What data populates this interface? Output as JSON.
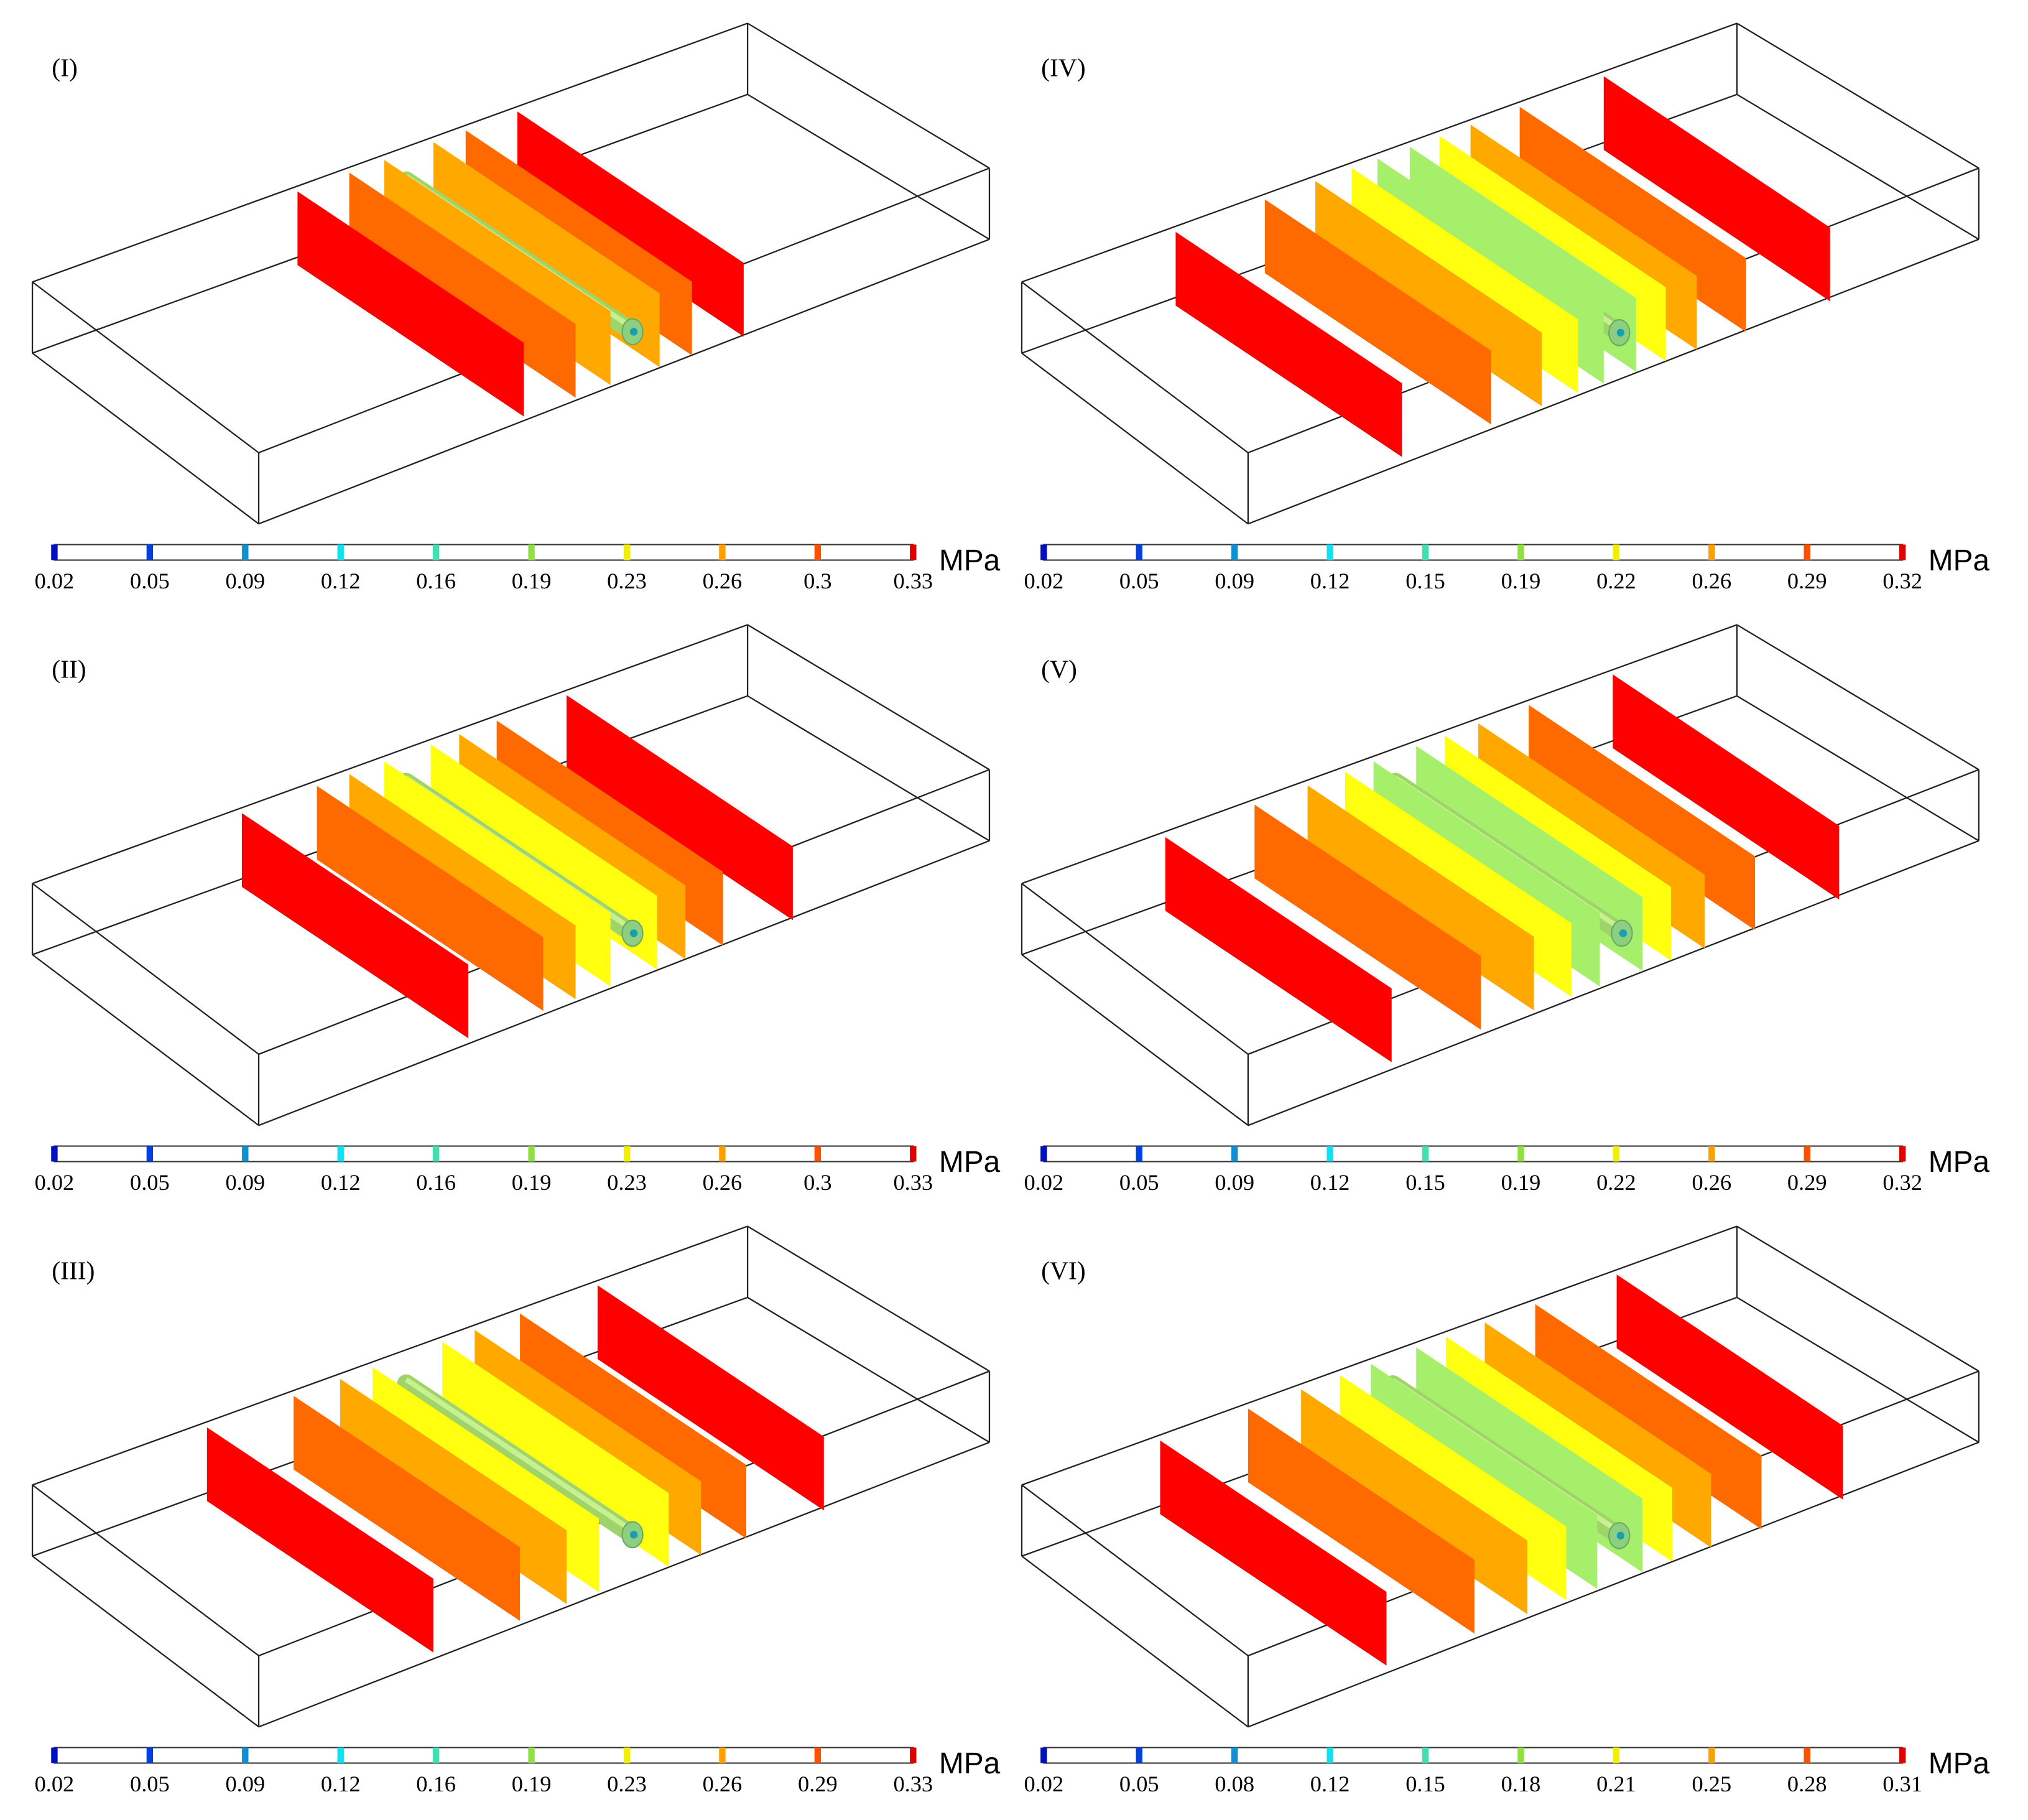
{
  "unit": "MPa",
  "panels": [
    {
      "label": "(I)",
      "colorbar_ticks": [
        0.02,
        0.05,
        0.09,
        0.12,
        0.16,
        0.19,
        0.23,
        0.26,
        0.3,
        0.33
      ]
    },
    {
      "label": "(II)",
      "colorbar_ticks": [
        0.02,
        0.05,
        0.09,
        0.12,
        0.16,
        0.19,
        0.23,
        0.26,
        0.3,
        0.33
      ]
    },
    {
      "label": "(III)",
      "colorbar_ticks": [
        0.02,
        0.05,
        0.09,
        0.12,
        0.16,
        0.19,
        0.23,
        0.26,
        0.29,
        0.33
      ]
    },
    {
      "label": "(IV)",
      "colorbar_ticks": [
        0.02,
        0.05,
        0.09,
        0.12,
        0.15,
        0.19,
        0.22,
        0.26,
        0.29,
        0.32
      ]
    },
    {
      "label": "(V)",
      "colorbar_ticks": [
        0.02,
        0.05,
        0.09,
        0.12,
        0.15,
        0.19,
        0.22,
        0.26,
        0.29,
        0.32
      ]
    },
    {
      "label": "(VI)",
      "colorbar_ticks": [
        0.02,
        0.05,
        0.08,
        0.12,
        0.15,
        0.18,
        0.21,
        0.25,
        0.28,
        0.31
      ]
    }
  ]
}
